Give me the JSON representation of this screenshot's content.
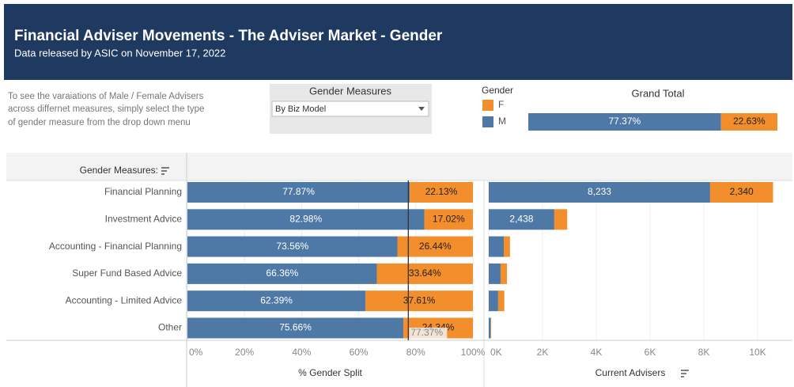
{
  "header": {
    "title": "Financial Adviser Movements - The Adviser Market - Gender",
    "subtitle": "Data released by ASIC on November 17, 2022"
  },
  "description": [
    "To see the varaiations of Male / Female Advisers",
    "across differnet measures, simply select the type",
    "of gender measure from the drop down menu"
  ],
  "filter": {
    "title": "Gender Measures",
    "selected": "By Biz Model"
  },
  "legend": {
    "title": "Gender"
  },
  "chart_data": [
    {
      "type": "bar",
      "orientation": "horizontal",
      "stacked": true,
      "title": "Grand Total",
      "series": [
        {
          "name": "M",
          "color": "#4e79a7",
          "values": [
            77.37
          ],
          "value_labels": [
            "77.37%"
          ]
        },
        {
          "name": "F",
          "color": "#f28e2b",
          "values": [
            22.63
          ],
          "value_labels": [
            "22.63%"
          ]
        }
      ],
      "xlim": [
        0,
        100
      ]
    },
    {
      "type": "bar",
      "orientation": "horizontal",
      "stacked": true,
      "category_label": "Gender Measures:",
      "categories": [
        "Financial Planning",
        "Investment Advice",
        "Accounting - Financial Planning",
        "Super Fund Based Advice",
        "Accounting - Limited Advice",
        "Other"
      ],
      "series": [
        {
          "name": "M",
          "color": "#4e79a7",
          "values": [
            77.87,
            82.98,
            73.56,
            66.36,
            62.39,
            75.66
          ],
          "value_labels": [
            "77.87%",
            "82.98%",
            "73.56%",
            "66.36%",
            "62.39%",
            "75.66%"
          ]
        },
        {
          "name": "F",
          "color": "#f28e2b",
          "values": [
            22.13,
            17.02,
            26.44,
            33.64,
            37.61,
            24.34
          ],
          "value_labels": [
            "22.13%",
            "17.02%",
            "26.44%",
            "33.64%",
            "37.61%",
            "24.34%"
          ]
        }
      ],
      "xlim": [
        0,
        100
      ],
      "xticks": [
        {
          "value": 0,
          "label": "0%"
        },
        {
          "value": 20,
          "label": "20%"
        },
        {
          "value": 40,
          "label": "40%"
        },
        {
          "value": 60,
          "label": "60%"
        },
        {
          "value": 80,
          "label": "80%"
        },
        {
          "value": 100,
          "label": "100%"
        }
      ],
      "grid": true,
      "x_label": "% Gender Split",
      "reference_line": {
        "value": 77.37,
        "label": "77.37%"
      }
    },
    {
      "type": "bar",
      "orientation": "horizontal",
      "stacked": true,
      "series": [
        {
          "name": "M",
          "color": "#4e79a7",
          "values": [
            8233,
            2438,
            560,
            440,
            350,
            70
          ],
          "value_labels": [
            "8,233",
            "2,438",
            null,
            null,
            null,
            null
          ]
        },
        {
          "name": "F",
          "color": "#f28e2b",
          "values": [
            2340,
            480,
            230,
            240,
            230,
            20
          ],
          "value_labels": [
            "2,340",
            null,
            null,
            null,
            null,
            null
          ]
        }
      ],
      "xlim": [
        0,
        11000
      ],
      "xticks": [
        {
          "value": 0,
          "label": "0K"
        },
        {
          "value": 2000,
          "label": "2K"
        },
        {
          "value": 4000,
          "label": "4K"
        },
        {
          "value": 6000,
          "label": "6K"
        },
        {
          "value": 8000,
          "label": "8K"
        },
        {
          "value": 10000,
          "label": "10K"
        }
      ],
      "grid": true,
      "x_label": "Current Advisers"
    }
  ]
}
